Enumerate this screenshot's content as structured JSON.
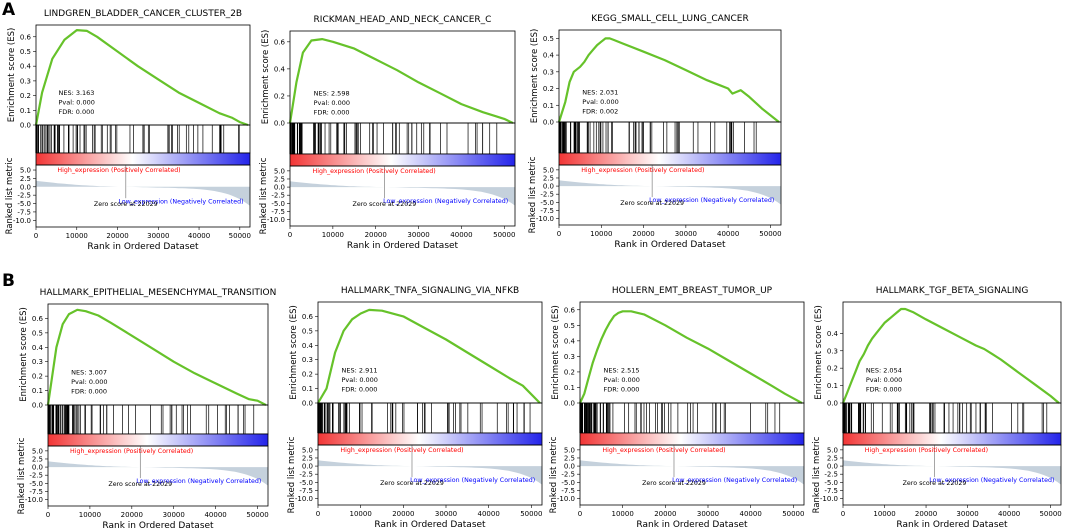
{
  "panels": [
    {
      "id": "A",
      "label": "A"
    },
    {
      "id": "B",
      "label": "B"
    }
  ],
  "colors": {
    "curve": "#66c22a",
    "high": "#ff0000",
    "low": "#0000ff",
    "metric_fill": "#c5d1dc",
    "frame": "#000000"
  },
  "common": {
    "y_label_top": "Enrichment score (ES)",
    "y_label_bottom": "Ranked list metric",
    "x_label": "Rank in Ordered Dataset",
    "high_text": "High_expression (Positively Correlated)",
    "low_text": "Low_expression (Negatively Correlated)",
    "zero_text": "Zero score at 22029",
    "metric_ticks": [
      "5.0",
      "2.5",
      "0.0",
      "-2.5",
      "-5.0",
      "-7.5",
      "-10.0"
    ],
    "x_ticks": [
      "0",
      "10000",
      "20000",
      "30000",
      "40000",
      "50000"
    ]
  },
  "chart_data": [
    {
      "type": "line",
      "panel": "A",
      "title": "LINDGREN_BLADDER_CANCER_CLUSTER_2B",
      "es_ticks": [
        "0.0",
        "0.1",
        "0.2",
        "0.3",
        "0.4",
        "0.5",
        "0.6"
      ],
      "ylim": [
        0,
        0.68
      ],
      "xlim": [
        0,
        52500
      ],
      "stats": [
        "NES: 3.163",
        "Pval: 0.000",
        "FDR: 0.000"
      ],
      "style": "smooth",
      "x": [
        0,
        1500,
        4000,
        7000,
        10000,
        12500,
        15000,
        20000,
        25000,
        30000,
        35000,
        40000,
        45000,
        48000,
        50000,
        52000
      ],
      "y": [
        0,
        0.22,
        0.45,
        0.58,
        0.645,
        0.64,
        0.6,
        0.5,
        0.4,
        0.31,
        0.22,
        0.15,
        0.08,
        0.05,
        0.02,
        0
      ]
    },
    {
      "type": "line",
      "panel": "A",
      "title": "RICKMAN_HEAD_AND_NECK_CANCER_C",
      "es_ticks": [
        "0.0",
        "0.2",
        "0.4",
        "0.6"
      ],
      "ylim": [
        0,
        0.68
      ],
      "xlim": [
        0,
        52500
      ],
      "stats": [
        "NES: 2.598",
        "Pval: 0.000",
        "FDR: 0.000"
      ],
      "style": "smooth",
      "x": [
        0,
        1500,
        3000,
        5000,
        7500,
        10000,
        15000,
        20000,
        25000,
        30000,
        35000,
        40000,
        45000,
        48000,
        50000,
        52000
      ],
      "y": [
        0,
        0.3,
        0.52,
        0.61,
        0.62,
        0.6,
        0.55,
        0.47,
        0.39,
        0.3,
        0.22,
        0.14,
        0.08,
        0.05,
        0.03,
        0
      ]
    },
    {
      "type": "line",
      "panel": "A",
      "title": "KEGG_SMALL_CELL_LUNG_CANCER",
      "es_ticks": [
        "0.0",
        "0.1",
        "0.2",
        "0.3",
        "0.4",
        "0.5"
      ],
      "ylim": [
        0,
        0.55
      ],
      "xlim": [
        0,
        52500
      ],
      "stats": [
        "NES: 2.031",
        "Pval: 0.000",
        "FDR: 0.002"
      ],
      "style": "jagged",
      "x": [
        0,
        1500,
        2500,
        3500,
        5000,
        6000,
        7000,
        8000,
        9000,
        10000,
        11000,
        12000,
        13000,
        15000,
        20000,
        25000,
        30000,
        35000,
        38000,
        40000,
        41000,
        42000,
        43000,
        45000,
        48000,
        52000
      ],
      "y": [
        0,
        0.12,
        0.24,
        0.3,
        0.33,
        0.36,
        0.4,
        0.43,
        0.46,
        0.48,
        0.5,
        0.5,
        0.49,
        0.47,
        0.42,
        0.37,
        0.31,
        0.25,
        0.22,
        0.2,
        0.17,
        0.18,
        0.19,
        0.15,
        0.08,
        0
      ]
    },
    {
      "type": "line",
      "panel": "B",
      "title": "HALLMARK_EPITHELIAL_MESENCHYMAL_TRANSITION",
      "es_ticks": [
        "0.0",
        "0.1",
        "0.2",
        "0.3",
        "0.4",
        "0.5",
        "0.6"
      ],
      "ylim": [
        0,
        0.7
      ],
      "xlim": [
        0,
        52500
      ],
      "stats": [
        "NES: 3.007",
        "Pval: 0.000",
        "FDR: 0.000"
      ],
      "style": "smooth",
      "x": [
        0,
        1000,
        2000,
        3500,
        5000,
        7000,
        9000,
        12000,
        15000,
        20000,
        25000,
        30000,
        35000,
        40000,
        45000,
        48000,
        50000,
        52000
      ],
      "y": [
        0,
        0.2,
        0.4,
        0.56,
        0.63,
        0.66,
        0.65,
        0.62,
        0.57,
        0.48,
        0.39,
        0.3,
        0.22,
        0.15,
        0.08,
        0.04,
        0.03,
        0
      ]
    },
    {
      "type": "line",
      "panel": "B",
      "title": "HALLMARK_TNFA_SIGNALING_VIA_NFKB",
      "es_ticks": [
        "0.0",
        "0.1",
        "0.2",
        "0.3",
        "0.4",
        "0.5",
        "0.6"
      ],
      "ylim": [
        0,
        0.7
      ],
      "xlim": [
        0,
        52500
      ],
      "stats": [
        "NES: 2.911",
        "Pval: 0.000",
        "FDR: 0.000"
      ],
      "style": "smooth",
      "x": [
        0,
        2000,
        4000,
        6000,
        8000,
        10000,
        12000,
        15000,
        20000,
        25000,
        30000,
        35000,
        40000,
        45000,
        48000,
        52000
      ],
      "y": [
        0,
        0.1,
        0.35,
        0.5,
        0.58,
        0.62,
        0.645,
        0.64,
        0.6,
        0.52,
        0.44,
        0.35,
        0.26,
        0.17,
        0.12,
        0
      ]
    },
    {
      "type": "line",
      "panel": "B",
      "title": "HOLLERN_EMT_BREAST_TUMOR_UP",
      "es_ticks": [
        "0.0",
        "0.1",
        "0.2",
        "0.3",
        "0.4",
        "0.5",
        "0.6"
      ],
      "ylim": [
        0,
        0.65
      ],
      "xlim": [
        0,
        52500
      ],
      "stats": [
        "NES: 2.515",
        "Pval: 0.000",
        "FDR: 0.000"
      ],
      "style": "jagged",
      "x": [
        0,
        1000,
        2000,
        3000,
        4000,
        5000,
        6000,
        7000,
        8000,
        9000,
        10000,
        12000,
        15000,
        20000,
        25000,
        30000,
        35000,
        40000,
        45000,
        48000,
        50000,
        52000
      ],
      "y": [
        0,
        0.06,
        0.16,
        0.26,
        0.34,
        0.41,
        0.47,
        0.52,
        0.56,
        0.58,
        0.59,
        0.59,
        0.57,
        0.5,
        0.42,
        0.35,
        0.27,
        0.19,
        0.11,
        0.06,
        0.03,
        0
      ]
    },
    {
      "type": "line",
      "panel": "B",
      "title": "HALLMARK_TGF_BETA_SIGNALING",
      "es_ticks": [
        "0.0",
        "0.1",
        "0.2",
        "0.3",
        "0.4"
      ],
      "ylim": [
        0,
        0.58
      ],
      "xlim": [
        0,
        52500
      ],
      "stats": [
        "NES: 2.054",
        "Pval: 0.000",
        "FDR: 0.000"
      ],
      "style": "jagged",
      "x": [
        0,
        1000,
        2000,
        3000,
        4000,
        5000,
        6000,
        7000,
        8000,
        9000,
        10000,
        11000,
        12000,
        13000,
        14000,
        15000,
        17000,
        20000,
        24000,
        28000,
        32000,
        34000,
        36000,
        38000,
        42000,
        46000,
        50000,
        52000
      ],
      "y": [
        0,
        0.06,
        0.12,
        0.18,
        0.24,
        0.28,
        0.33,
        0.37,
        0.4,
        0.43,
        0.46,
        0.48,
        0.5,
        0.52,
        0.54,
        0.54,
        0.52,
        0.48,
        0.43,
        0.38,
        0.33,
        0.31,
        0.28,
        0.25,
        0.18,
        0.11,
        0.04,
        0
      ]
    }
  ]
}
